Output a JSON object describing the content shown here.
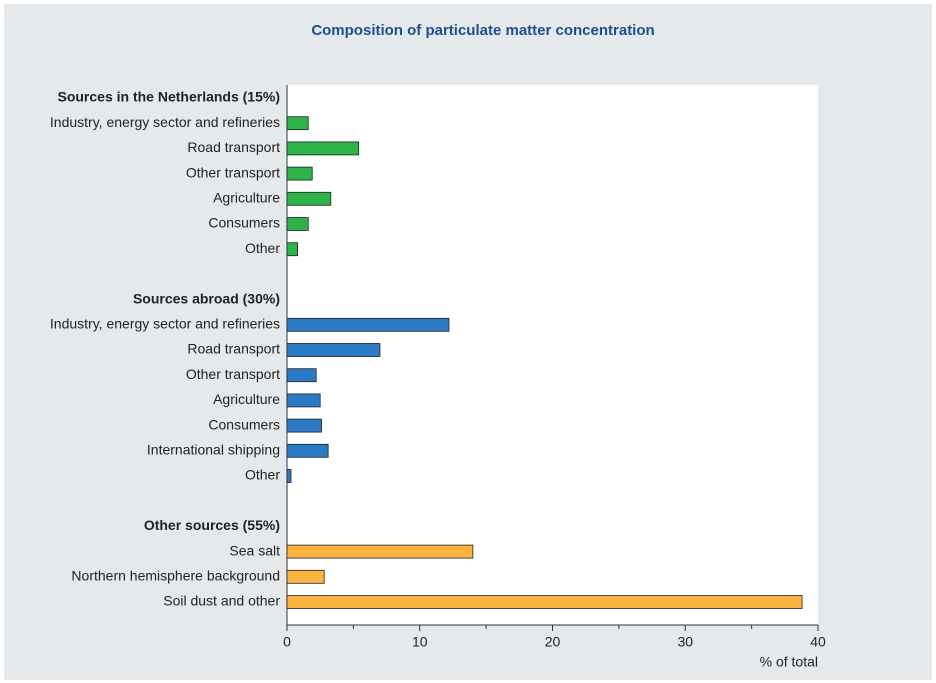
{
  "chart_data": {
    "type": "bar",
    "orientation": "horizontal",
    "title": "Composition of particulate matter concentration",
    "groups": [
      {
        "name": "Sources in the Netherlands (15%)",
        "color": "#2eb34b",
        "categories": [
          "Industry, energy sector and refineries",
          "Road transport",
          "Other transport",
          "Agriculture",
          "Consumers",
          "Other"
        ],
        "values": [
          1.6,
          5.4,
          1.9,
          3.3,
          1.6,
          0.8
        ]
      },
      {
        "name": "Sources abroad (30%)",
        "color": "#2b7bc4",
        "categories": [
          "Industry, energy sector and refineries",
          "Road transport",
          "Other transport",
          "Agriculture",
          "Consumers",
          "International shipping",
          "Other"
        ],
        "values": [
          12.2,
          7.0,
          2.2,
          2.5,
          2.6,
          3.1,
          0.3
        ]
      },
      {
        "name": "Other sources (55%)",
        "color": "#fbb342",
        "categories": [
          "Sea salt",
          "Northern hemisphere background",
          "Soil dust and other"
        ],
        "values": [
          14.0,
          2.8,
          38.8
        ]
      }
    ],
    "xlim": [
      0,
      40
    ],
    "xticks": [
      0,
      10,
      20,
      30,
      40
    ],
    "minor_xticks": [
      5,
      15,
      25,
      35
    ],
    "xlabel": "% of total"
  }
}
